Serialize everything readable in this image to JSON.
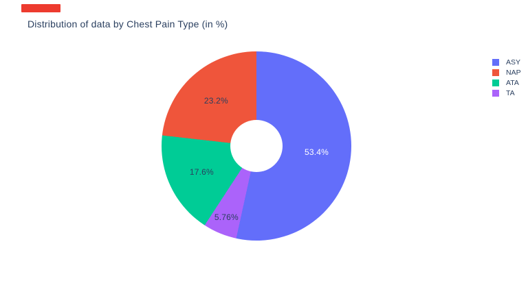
{
  "title": {
    "text": "Distribution of data by Chest Pain Type (in %)",
    "color": "#2a3f5f"
  },
  "marker": {
    "color": "#ed3b2f"
  },
  "legend": {
    "position": "right",
    "items": [
      {
        "label": "ASY",
        "color": "#636efa"
      },
      {
        "label": "NAP",
        "color": "#ef553b"
      },
      {
        "label": "ATA",
        "color": "#00cc96"
      },
      {
        "label": "TA",
        "color": "#ab63fa"
      }
    ]
  },
  "chart_data": {
    "type": "pie",
    "title": "Distribution of data by Chest Pain Type (in %)",
    "labels": [
      "ASY",
      "NAP",
      "ATA",
      "TA"
    ],
    "values": [
      53.4,
      23.2,
      17.6,
      5.76
    ],
    "value_labels": [
      "53.4%",
      "23.2%",
      "17.6%",
      "5.76%"
    ],
    "colors": [
      "#636efa",
      "#ef553b",
      "#00cc96",
      "#ab63fa"
    ],
    "label_text_colors": [
      "#ffffff",
      "#2a3f5f",
      "#2a3f5f",
      "#2a3f5f"
    ],
    "hole": 0.28,
    "start_angle_deg": 0,
    "largest_slice_clockwise_rest_counterclockwise": true,
    "legend_position": "right",
    "background": "#ffffff"
  }
}
